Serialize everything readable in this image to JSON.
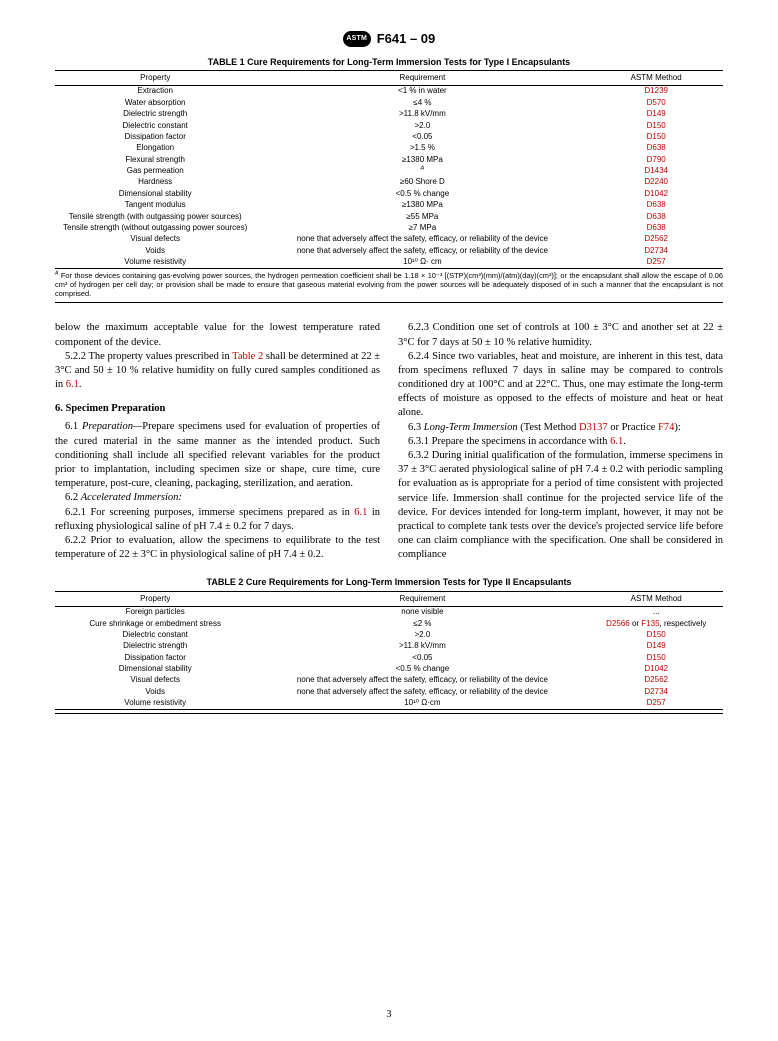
{
  "header": {
    "logo_text": "ASTM",
    "doc_id": "F641 – 09"
  },
  "table1": {
    "title": "TABLE 1 Cure Requirements for Long-Term Immersion Tests for Type I Encapsulants",
    "columns": [
      "Property",
      "Requirement",
      "ASTM Method"
    ],
    "rows": [
      {
        "property": "Extraction",
        "requirement": "<1 % in water",
        "method": "D1239"
      },
      {
        "property": "Water absorption",
        "requirement": "≤4 %",
        "method": "D570"
      },
      {
        "property": "Dielectric strength",
        "requirement": ">11.8 kV/mm",
        "method": "D149"
      },
      {
        "property": "Dielectric constant",
        "requirement": ">2.0",
        "method": "D150"
      },
      {
        "property": "Dissipation factor",
        "requirement": "<0.05",
        "method": "D150"
      },
      {
        "property": "Elongation",
        "requirement": ">1.5 %",
        "method": "D638"
      },
      {
        "property": "Flexural strength",
        "requirement": "≥1380 MPa",
        "method": "D790"
      },
      {
        "property": "Gas permeation",
        "requirement": "A",
        "method": "D1434"
      },
      {
        "property": "Hardness",
        "requirement": "≥60 Shore D",
        "method": "D2240"
      },
      {
        "property": "Dimensional stability",
        "requirement": "<0.5 % change",
        "method": "D1042"
      },
      {
        "property": "Tangent modulus",
        "requirement": "≥1380 MPa",
        "method": "D638"
      },
      {
        "property": "Tensile strength (with outgassing power sources)",
        "requirement": "≥55 MPa",
        "method": "D638"
      },
      {
        "property": "Tensile strength (without outgassing power sources)",
        "requirement": "≥7 MPa",
        "method": "D638"
      },
      {
        "property": "Visual defects",
        "requirement": "none that adversely affect the safety, efficacy, or reliability of the device",
        "method": "D2562"
      },
      {
        "property": "Voids",
        "requirement": "none that adversely affect the safety, efficacy, or reliability of the device",
        "method": "D2734"
      },
      {
        "property": "Volume resistivity",
        "requirement": "10¹⁰ Ω· cm",
        "method": "D257"
      }
    ],
    "footnote_label": "A",
    "footnote_text": " For those devices containing gas-evolving power sources, the hydrogen permeation coefficient shall be 1.18 × 10⁻³ [(STP)(cm³)(mm)/(atm)(day)(cm²)]; or the encapsulant shall allow the escape of 0.06 cm³ of hydrogen per cell day; or provision shall be made to ensure that gaseous material evolving from the power sources will be adequately disposed of in such a manner that the encapsulant is not comprised."
  },
  "body": {
    "p_lead": "below the maximum acceptable value for the lowest tempera­ture rated component of the device.",
    "p522a": "5.2.2 The property values prescribed in ",
    "p522ref": "Table 2",
    "p522b": " shall be determined at 22 ± 3°C and 50 ± 10 % relative humidity on fully cured samples conditioned as in ",
    "p522ref2": "6.1",
    "p522c": ".",
    "h6": "6.  Specimen Preparation",
    "p61a": "6.1 ",
    "p61i": "Preparation—",
    "p61b": "Prepare specimens used for evaluation of properties of the cured material in the same manner as the intended product. Such conditioning shall include all specified relevant variables for the product prior to implantation, includ­ing specimen size or shape, cure time, cure temperature, post-cure, cleaning, packaging, sterilization, and aeration.",
    "p62h": "6.2 ",
    "p62hi": "Accelerated Immersion:",
    "p621a": "6.2.1 For screening purposes, immerse specimens prepared as in ",
    "p621ref": "6.1",
    "p621b": " in refluxing physiological saline of pH 7.4 ± 0.2 for 7 days.",
    "p622": "6.2.2 Prior to evaluation, allow the specimens to equilibrate to the test temperature of 22 ± 3°C in physiological saline of pH 7.4 ± 0.2.",
    "p623": "6.2.3 Condition one set of controls at 100 ± 3°C and another set at 22 ± 3°C for 7 days at 50 ± 10 % relative humidity.",
    "p624": "6.2.4 Since two variables, heat and moisture, are inherent in this test, data from specimens refluxed 7 days in saline may be compared to controls conditioned dry at 100°C and at 22°C. Thus, one may estimate the long-term effects of moisture as opposed to the effects of moisture and heat or heat alone.",
    "p63a": "6.3 ",
    "p63i": "Long-Term Immersion",
    "p63b": " (Test Method ",
    "p63ref1": "D3137",
    "p63c": " or Practice ",
    "p63ref2": "F74",
    "p63d": "):",
    "p631a": "6.3.1 Prepare the specimens in accordance with ",
    "p631ref": "6.1",
    "p631b": ".",
    "p632": "6.3.2 During initial qualification of the formulation, im­merse specimens in 37 ± 3°C aerated physiological saline of pH 7.4 ± 0.2 with periodic sampling for evaluation as is appropriate for a period of time consistent with projected service life. Immersion shall continue for the projected service life of the device. For devices intended for long-term implant, however, it may not be practical to complete tank tests over the device's projected service life before one can claim compliance with the specification. One shall be considered in compliance"
  },
  "table2": {
    "title": "TABLE 2 Cure Requirements for Long-Term Immersion Tests for Type II Encapsulants",
    "columns": [
      "Property",
      "Requirement",
      "ASTM Method"
    ],
    "rows": [
      {
        "property": "Foreign particles",
        "requirement": "none visible",
        "method_plain": "..."
      },
      {
        "property": "Cure shrinkage or embedment stress",
        "requirement": "≤2 %",
        "method_complex": {
          "r1": "D2566",
          "mid": " or ",
          "r2": "F135",
          "tail": ", respec­tively"
        }
      },
      {
        "property": "Dielectric constant",
        "requirement": ">2.0",
        "method": "D150"
      },
      {
        "property": "Dielectric strength",
        "requirement": ">11.8 kV/mm",
        "method": "D149"
      },
      {
        "property": "Dissipation factor",
        "requirement": "<0.05",
        "method": "D150"
      },
      {
        "property": "Dimensional stability",
        "requirement": "<0.5 % change",
        "method": "D1042"
      },
      {
        "property": "Visual defects",
        "requirement": "none that adversely affect the safety, efficacy, or reliability of the device",
        "method": "D2562"
      },
      {
        "property": "Voids",
        "requirement": "none that adversely affect the safety, efficacy, or reliability of the device",
        "method": "D2734"
      },
      {
        "property": "Volume resistivity",
        "requirement": "10¹⁰ Ω·cm",
        "method": "D257"
      }
    ]
  },
  "page_number": "3"
}
